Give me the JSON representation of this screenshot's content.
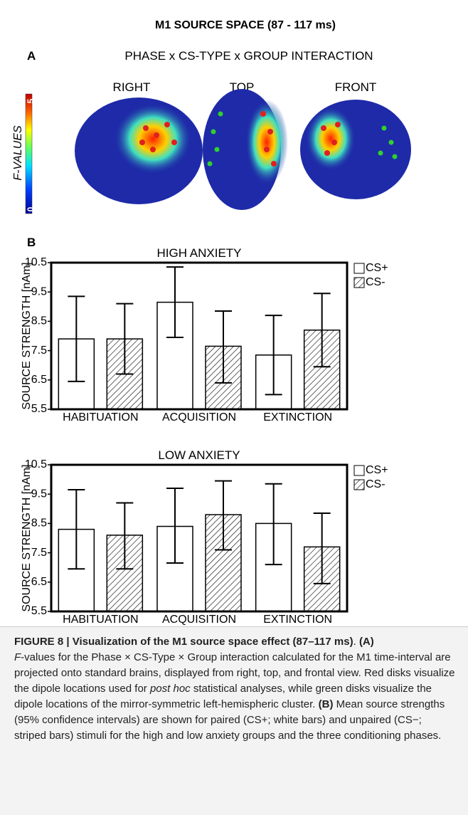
{
  "header": {
    "title": "M1 SOURCE SPACE (87 - 117 ms)"
  },
  "panel_a": {
    "letter": "A",
    "title": "PHASE x CS-TYPE x GROUP INTERACTION",
    "views": [
      "RIGHT",
      "TOP",
      "FRONT"
    ],
    "colorbar_label": "F-VALUES",
    "colorbar_ticks": [
      0,
      5
    ]
  },
  "panel_b": {
    "letter": "B"
  },
  "chart_data": [
    {
      "type": "bar",
      "title": "HIGH ANXIETY",
      "y_label": "SOURCE STRENGTH [nAm]",
      "categories": [
        "HABITUATION",
        "ACQUISITION",
        "EXTINCTION"
      ],
      "series": [
        {
          "name": "CS+",
          "color": "#ffffff",
          "hatch": false,
          "values": [
            7.9,
            9.15,
            7.35
          ],
          "lower": [
            6.45,
            7.95,
            6.0
          ],
          "upper": [
            9.35,
            10.35,
            8.7
          ]
        },
        {
          "name": "CS-",
          "color": "#ffffff",
          "hatch": true,
          "values": [
            7.9,
            7.65,
            8.2
          ],
          "lower": [
            6.7,
            6.4,
            6.95
          ],
          "upper": [
            9.1,
            8.85,
            9.45
          ]
        }
      ],
      "ylim": [
        5.5,
        10.5
      ],
      "yticks": [
        5.5,
        6.5,
        7.5,
        8.5,
        9.5,
        10.5
      ],
      "legend": "outside-right"
    },
    {
      "type": "bar",
      "title": "LOW ANXIETY",
      "y_label": "SOURCE STRENGTH [nAm]",
      "categories": [
        "HABITUATION",
        "ACQUISITION",
        "EXTINCTION"
      ],
      "series": [
        {
          "name": "CS+",
          "color": "#ffffff",
          "hatch": false,
          "values": [
            8.3,
            8.4,
            8.5
          ],
          "lower": [
            6.95,
            7.15,
            7.1
          ],
          "upper": [
            9.65,
            9.7,
            9.85
          ]
        },
        {
          "name": "CS-",
          "color": "#ffffff",
          "hatch": true,
          "values": [
            8.1,
            8.8,
            7.7
          ],
          "lower": [
            6.95,
            7.6,
            6.45
          ],
          "upper": [
            9.2,
            9.95,
            8.85
          ]
        }
      ],
      "ylim": [
        5.5,
        10.5
      ],
      "yticks": [
        5.5,
        6.5,
        7.5,
        8.5,
        9.5,
        10.5
      ],
      "legend": "outside-right"
    }
  ],
  "caption": [
    "FIGURE 8 | Visualization of the M1 source space effect (87–117 ms)",
    ". ",
    "(A)",
    "F",
    "-values for the Phase × CS-Type × Group interaction calculated for the M1 time-interval are projected onto standard brains, displayed from right, top, and frontal view. Red disks visualize the dipole locations used for ",
    "post hoc",
    " statistical analyses, while green disks visualize the dipole locations of the mirror-symmetric left-hemispheric cluster. ",
    "(B)",
    " Mean source strengths (95% confidence intervals) are shown for paired (CS+; white bars) and unpaired (CS−; striped bars) stimuli for the high and low anxiety groups and the three conditioning phases."
  ]
}
